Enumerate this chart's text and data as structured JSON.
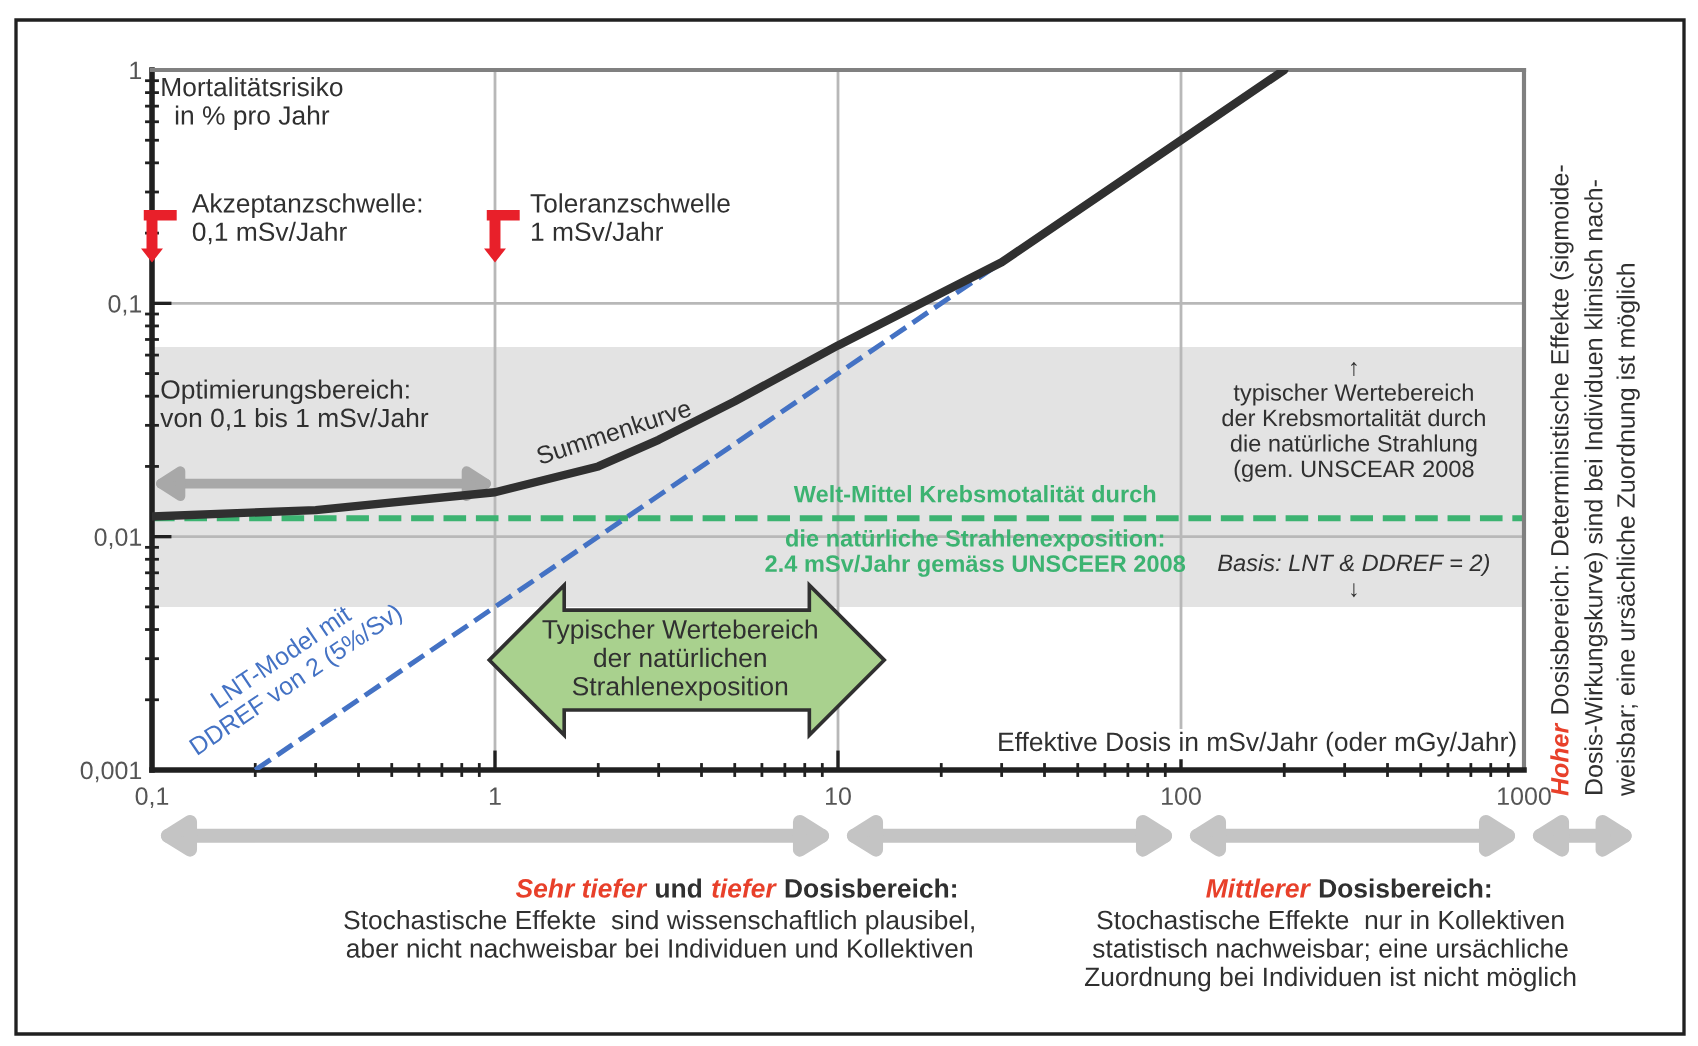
{
  "chart_data": {
    "type": "line",
    "log": "xy",
    "xlabel": "Effektive Dosis in mSv/Jahr (oder mGy/Jahr)",
    "ylabel": "Mortalitätsrisiko\nin % pro Jahr",
    "xlim": [
      0.1,
      1000
    ],
    "ylim": [
      0.001,
      1
    ],
    "xticks": [
      {
        "value": 0.1,
        "label": "0,1"
      },
      1,
      10,
      100,
      1000
    ],
    "yticks": [
      {
        "value": 0.001,
        "label": "0,001"
      },
      {
        "value": 0.01,
        "label": "0,01"
      },
      {
        "value": 0.1,
        "label": "0,1"
      },
      1
    ],
    "grid": true,
    "series": [
      {
        "name": "Summenkurve",
        "color": "#303030",
        "line_style": "solid",
        "x": [
          0.1,
          0.3,
          1,
          2,
          3,
          5,
          10,
          30,
          100,
          200
        ],
        "values": [
          0.0122,
          0.013,
          0.0155,
          0.02,
          0.026,
          0.038,
          0.066,
          0.15,
          0.5,
          1.0
        ]
      },
      {
        "name": "LNT-Model mit\nDDREF von 2 (5%/Sv)",
        "color": "#4472c4",
        "line_style": "dashed",
        "x": [
          0.2,
          200
        ],
        "values": [
          0.001,
          1
        ]
      }
    ],
    "ref_lines": [
      {
        "axis": "y",
        "value": 0.012,
        "color": "#3cb371",
        "line_style": "dashed"
      }
    ],
    "bands": [
      {
        "axis": "y",
        "from": 0.005,
        "to": 0.065,
        "label": "↑\ntypischer Wertebereich\nder Krebsmortalität durch\ndie natürliche Strahlung\n(gem. UNSCEAR 2008\nBasis: LNT & DDREF = 2)\n↓",
        "color": "#e3e3e3"
      }
    ],
    "annotations": [
      "Akzeptanzschwelle:\n0,1 mSv/Jahr",
      "Toleranzschwelle\n1 mSv/Jahr",
      "Optimierungsbereich:\nvon 0,1 bis 1 mSv/Jahr",
      "Typischer Wertebereich\nder natürlichen\nStrahlenexposition",
      "Sehr tiefer",
      "und",
      "tiefer",
      "Dosisbereich:",
      "Stochastische Effekte  sind wissenschaftlich plausibel,\naber nicht nachweisbar bei Individuen und Kollektiven",
      "Mittlerer",
      "Dosisbereich:",
      "Stochastische Effekte  nur in Kollektiven\nstatistisch nachweisbar; eine ursächliche\nZuordnung bei Individuen ist nicht möglich",
      "Hoher",
      "Dosisbereich: Deterministische Effekte (sigmoide-",
      "Dosis-Wirkungskurve) sind bei Individuen klinisch nach-",
      "weisbar; eine ursächliche Zuordnung ist möglich",
      "Welt-Mittel Krebsmotalität durch\ndie natürliche Strahlenexposition:\n2.4 mSv/Jahr gemäss UNSCEER 2008"
    ]
  }
}
